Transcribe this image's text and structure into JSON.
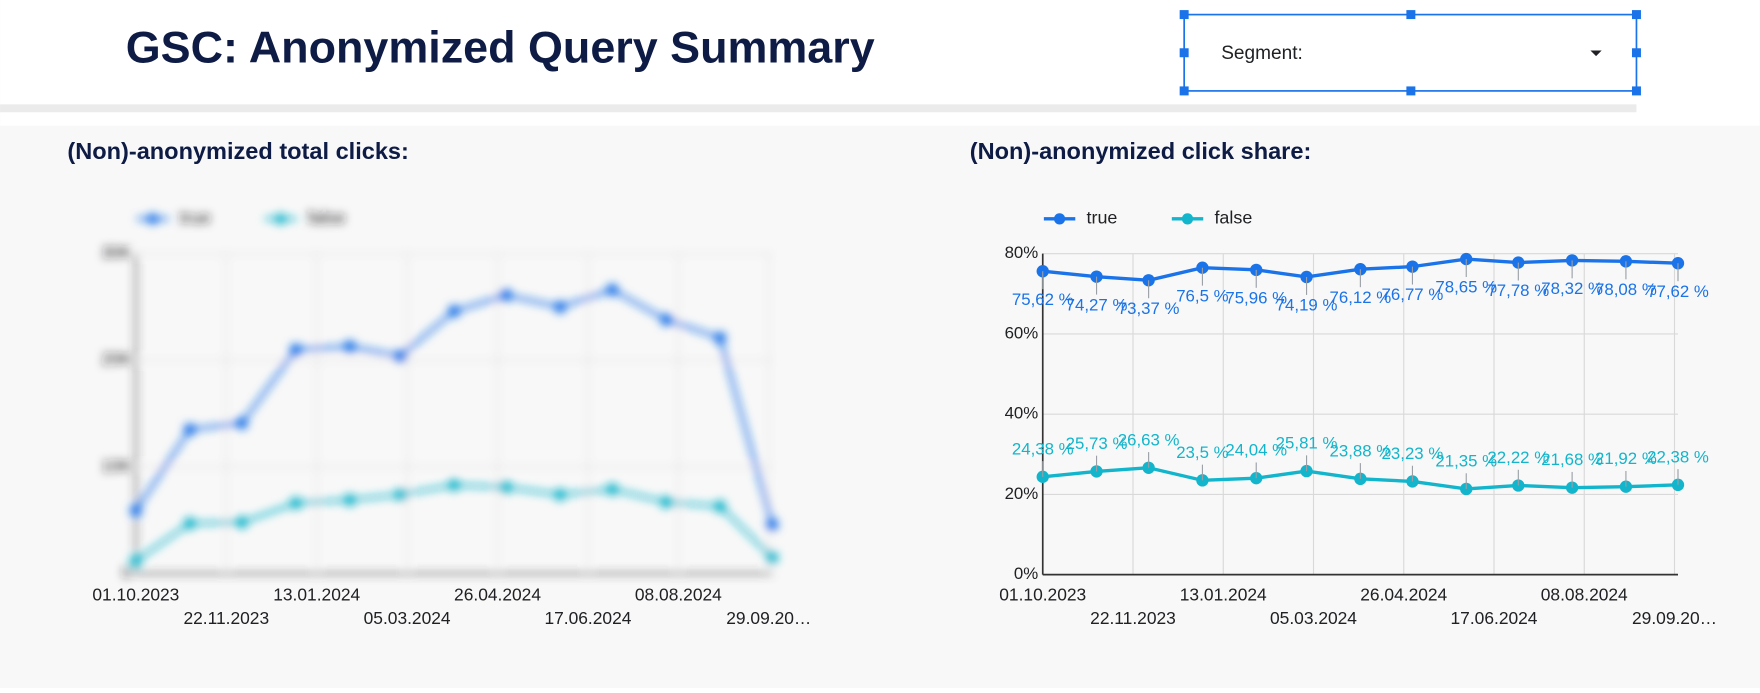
{
  "header": {
    "title": "GSC: Anonymized Query Summary"
  },
  "segment_control": {
    "label": "Segment:"
  },
  "chart_data": [
    {
      "type": "line",
      "title": "(Non)-anonymized total clicks:",
      "x": [
        "2023-10-01",
        "2023-11-01",
        "2023-12-01",
        "2024-01-01",
        "2024-02-01",
        "2024-03-01",
        "2024-04-01",
        "2024-05-01",
        "2024-06-01",
        "2024-07-01",
        "2024-08-01",
        "2024-09-01",
        "2024-10-01"
      ],
      "xlim": [
        "2023-10-01",
        "2024-10-01"
      ],
      "xticks": [
        {
          "value": "2023-10-01",
          "label": "01.10.2023"
        },
        {
          "value": "2023-11-22",
          "label": "22.11.2023"
        },
        {
          "value": "2024-01-13",
          "label": "13.01.2024"
        },
        {
          "value": "2024-03-05",
          "label": "05.03.2024"
        },
        {
          "value": "2024-04-26",
          "label": "26.04.2024"
        },
        {
          "value": "2024-06-17",
          "label": "17.06.2024"
        },
        {
          "value": "2024-08-08",
          "label": "08.08.2024"
        },
        {
          "value": "2024-09-29",
          "label": "29.09.20…"
        }
      ],
      "ylim": [
        0,
        30000
      ],
      "yticks": [
        0,
        {
          "value": 10000,
          "label": "10K"
        },
        {
          "value": 20000,
          "label": "20K"
        },
        {
          "value": 30000,
          "label": "30K"
        }
      ],
      "grid": true,
      "legend": "top-left",
      "series": [
        {
          "name": "true",
          "color": "#1a73e8",
          "values": [
            5900,
            13500,
            14100,
            21000,
            21300,
            20400,
            24600,
            26100,
            25000,
            26600,
            23800,
            22100,
            4600
          ]
        },
        {
          "name": "false",
          "color": "#12b5cb",
          "values": [
            1200,
            4700,
            4800,
            6600,
            6900,
            7400,
            8300,
            8100,
            7400,
            7900,
            6700,
            6300,
            1500
          ]
        }
      ]
    },
    {
      "type": "line",
      "title": "(Non)-anonymized click share:",
      "x": [
        "2023-10-01",
        "2023-11-01",
        "2023-12-01",
        "2024-01-01",
        "2024-02-01",
        "2024-03-01",
        "2024-04-01",
        "2024-05-01",
        "2024-06-01",
        "2024-07-01",
        "2024-08-01",
        "2024-09-01",
        "2024-10-01"
      ],
      "xlim": [
        "2023-10-01",
        "2024-10-01"
      ],
      "xticks": [
        {
          "value": "2023-10-01",
          "label": "01.10.2023"
        },
        {
          "value": "2023-11-22",
          "label": "22.11.2023"
        },
        {
          "value": "2024-01-13",
          "label": "13.01.2024"
        },
        {
          "value": "2024-03-05",
          "label": "05.03.2024"
        },
        {
          "value": "2024-04-26",
          "label": "26.04.2024"
        },
        {
          "value": "2024-06-17",
          "label": "17.06.2024"
        },
        {
          "value": "2024-08-08",
          "label": "08.08.2024"
        },
        {
          "value": "2024-09-29",
          "label": "29.09.20…"
        }
      ],
      "ylim": [
        0,
        80
      ],
      "yticks": [
        {
          "value": 0,
          "label": "0%"
        },
        {
          "value": 20,
          "label": "20%"
        },
        {
          "value": 40,
          "label": "40%"
        },
        {
          "value": 60,
          "label": "60%"
        },
        {
          "value": 80,
          "label": "80%"
        }
      ],
      "grid": true,
      "legend": "top-left",
      "series": [
        {
          "name": "true",
          "color": "#1a73e8",
          "values": [
            75.62,
            74.27,
            73.37,
            76.5,
            75.96,
            74.19,
            76.12,
            76.77,
            78.65,
            77.78,
            78.32,
            78.08,
            77.62
          ],
          "value_labels": [
            "75,62 %",
            "74,27 %",
            "73,37 %",
            "76,5 %",
            "75,96 %",
            "74,19 %",
            "76,12 %",
            "76,77 %",
            "78,65 %",
            "77,78 %",
            "78,32 %",
            "78,08 %",
            "77,62 %"
          ]
        },
        {
          "name": "false",
          "color": "#12b5cb",
          "values": [
            24.38,
            25.73,
            26.63,
            23.5,
            24.04,
            25.81,
            23.88,
            23.23,
            21.35,
            22.22,
            21.68,
            21.92,
            22.38
          ],
          "value_labels": [
            "24,38 %",
            "25,73 %",
            "26,63 %",
            "23,5 %",
            "24,04 %",
            "25,81 %",
            "23,88 %",
            "23,23 %",
            "21,35 %",
            "22,22 %",
            "21,68 %",
            "21,92 %",
            "22,38 %"
          ]
        }
      ]
    }
  ]
}
